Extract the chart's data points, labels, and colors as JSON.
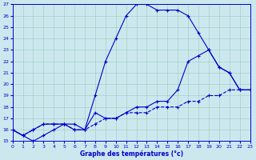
{
  "xlabel": "Graphe des températures (°c)",
  "background_color": "#cce8ee",
  "grid_color": "#99ccbb",
  "line_color": "#0000cc",
  "xmin": 0,
  "xmax": 23,
  "ymin": 15,
  "ymax": 27,
  "line1_x": [
    0,
    1,
    2,
    3,
    4,
    5,
    6,
    7,
    8,
    9,
    10,
    11,
    12,
    13,
    14,
    15,
    16,
    17,
    18,
    19,
    20,
    21,
    22,
    23
  ],
  "line1_y": [
    16.0,
    15.5,
    15.0,
    15.5,
    16.0,
    16.5,
    16.5,
    16.0,
    19.0,
    22.0,
    24.0,
    26.0,
    27.0,
    27.0,
    26.5,
    26.5,
    26.5,
    26.0,
    24.5,
    23.0,
    21.5,
    21.0,
    19.5,
    19.5
  ],
  "line2_x": [
    0,
    1,
    2,
    3,
    4,
    5,
    6,
    7,
    8,
    9,
    10,
    11,
    12,
    13,
    14,
    15,
    16,
    17,
    18,
    19,
    20,
    21,
    22,
    23
  ],
  "line2_y": [
    16.0,
    15.5,
    16.0,
    16.5,
    16.5,
    16.5,
    16.0,
    16.0,
    17.5,
    17.0,
    17.0,
    17.5,
    18.0,
    18.0,
    18.5,
    18.5,
    19.5,
    22.0,
    22.5,
    23.0,
    21.5,
    21.0,
    19.5,
    19.5
  ],
  "line3_x": [
    0,
    1,
    2,
    3,
    4,
    5,
    6,
    7,
    8,
    9,
    10,
    11,
    12,
    13,
    14,
    15,
    16,
    17,
    18,
    19,
    20,
    21,
    22,
    23
  ],
  "line3_y": [
    16.0,
    15.5,
    16.0,
    16.5,
    16.5,
    16.5,
    16.0,
    16.0,
    16.5,
    17.0,
    17.0,
    17.5,
    17.5,
    17.5,
    18.0,
    18.0,
    18.0,
    18.5,
    18.5,
    19.0,
    19.0,
    19.5,
    19.5,
    19.5
  ]
}
